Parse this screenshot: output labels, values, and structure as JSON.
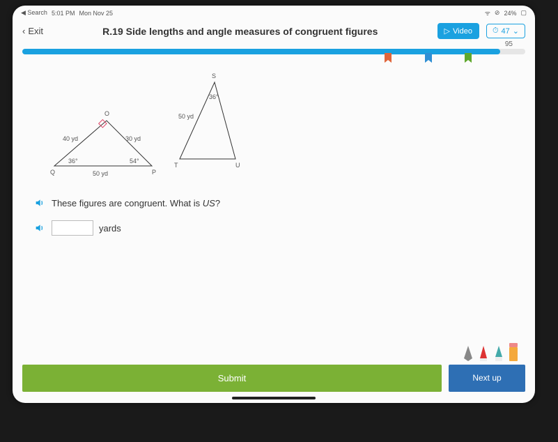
{
  "statusbar": {
    "back": "Search",
    "time": "5:01 PM",
    "date": "Mon Nov 25",
    "battery": "24%"
  },
  "header": {
    "exit": "Exit",
    "title": "R.19 Side lengths and angle measures of congruent figures",
    "video": "Video",
    "score": "47"
  },
  "progress": {
    "smartscore": "95",
    "fill_pct": 95,
    "ribbons": [
      {
        "pos_pct": 72,
        "color": "#e0653a"
      },
      {
        "pos_pct": 80,
        "color": "#2f8fd4"
      },
      {
        "pos_pct": 88,
        "color": "#5fa82d"
      }
    ]
  },
  "figure": {
    "tri1": {
      "v1": "Q",
      "v2": "O",
      "v3": "P",
      "side_QO": "40 yd",
      "side_OP": "30 yd",
      "side_QP": "50 yd",
      "ang_Q": "36°",
      "ang_P": "54°"
    },
    "tri2": {
      "v1": "T",
      "v2": "S",
      "v3": "U",
      "side_TS": "50 yd",
      "ang_S": "36°"
    }
  },
  "question": "These figures are congruent. What is US?",
  "answer_value": "",
  "answer_unit": "yards",
  "footer": {
    "submit": "Submit",
    "next": "Next up"
  },
  "colors": {
    "accent": "#1aa1e0",
    "submit": "#7bb135",
    "next": "#2e6fb4"
  }
}
